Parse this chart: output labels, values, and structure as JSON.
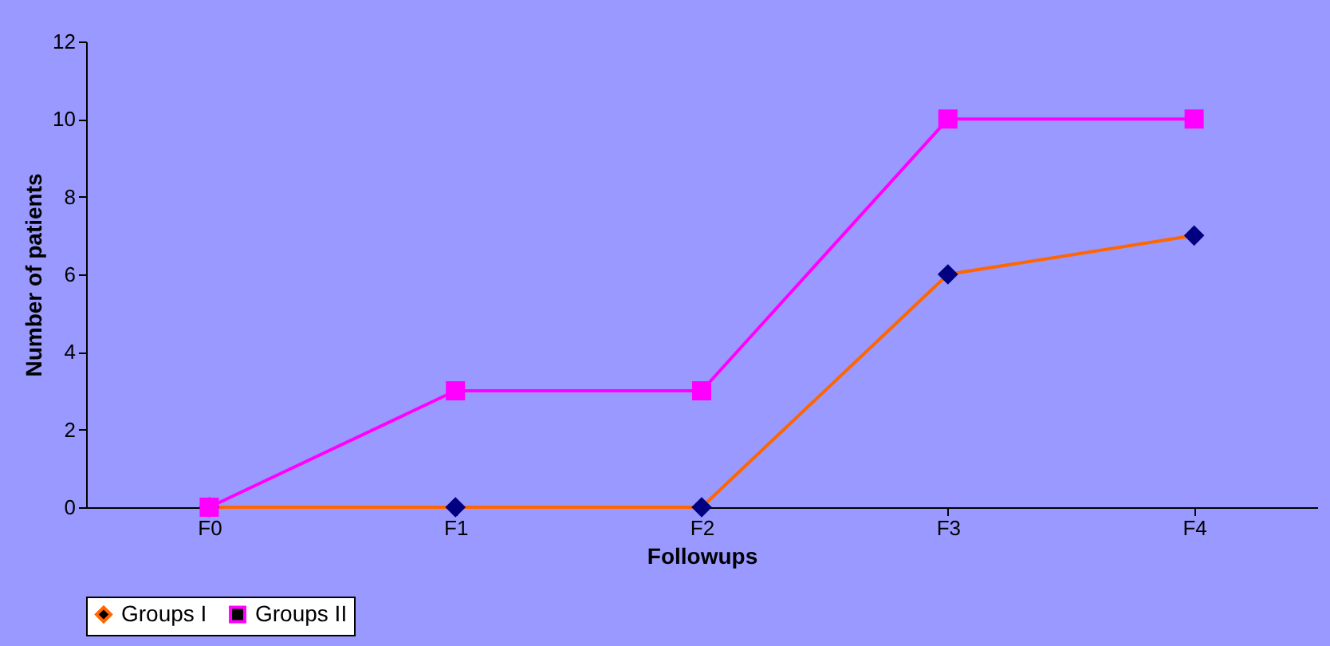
{
  "chart_data": {
    "type": "line",
    "xlabel": "Followups",
    "ylabel": "Number of patients",
    "categories": [
      "F0",
      "F1",
      "F2",
      "F3",
      "F4"
    ],
    "series": [
      {
        "name": "Groups I",
        "color": "#ff6600",
        "colors": [
          "#000080",
          "#000080",
          "#000080",
          "#000080",
          "#000080"
        ],
        "marker": "diamond",
        "values": [
          0,
          0,
          0,
          6,
          7
        ]
      },
      {
        "name": "Groups II",
        "color": "#ff00ff",
        "marker": "square",
        "values": [
          0,
          3,
          3,
          10,
          10
        ]
      }
    ],
    "ylim": [
      0,
      12
    ],
    "yticks": [
      0,
      2,
      4,
      6,
      8,
      10,
      12
    ],
    "grid": false,
    "legend": "bottom"
  }
}
